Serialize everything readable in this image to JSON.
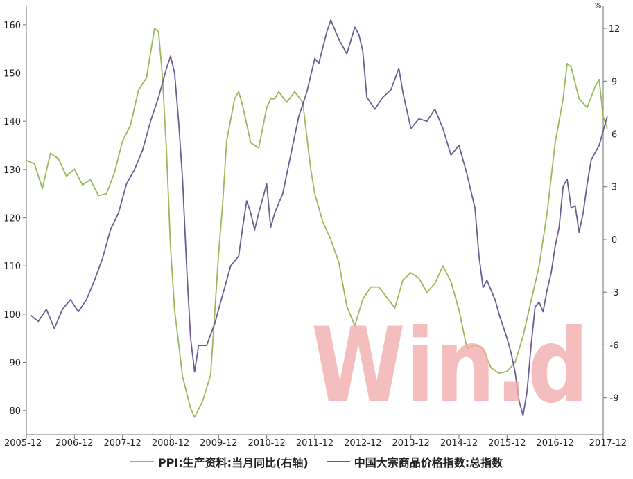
{
  "colors": {
    "ppi": "#9ab85a",
    "commodity": "#6d5b94",
    "watermark": "#f0a8a8",
    "axis": "#6f6f6f"
  },
  "watermark_text": "Win.d",
  "legend": {
    "ppi_label": "PPI:生产资料:当月同比(右轴)",
    "commodity_label": "中国大宗商品价格指数:总指数"
  },
  "chart_data": {
    "type": "line",
    "x_axis": {
      "ticks": [
        "2005-12",
        "2006-12",
        "2007-12",
        "2008-12",
        "2009-12",
        "2010-12",
        "2011-12",
        "2012-12",
        "2013-12",
        "2014-12",
        "2015-12",
        "2016-12",
        "2017-12"
      ],
      "range": [
        "2005-12",
        "2017-12"
      ]
    },
    "y_left": {
      "ticks": [
        80,
        90,
        100,
        110,
        120,
        130,
        140,
        150,
        160
      ],
      "range": [
        75,
        164
      ]
    },
    "y_right": {
      "unit": "%",
      "ticks": [
        -9,
        -6,
        -3,
        0,
        3,
        6,
        9,
        12
      ],
      "range": [
        -11.1,
        13.3
      ]
    },
    "series": [
      {
        "name": "PPI:生产资料:当月同比(右轴)",
        "axis": "right",
        "points": [
          [
            "2005-12",
            4.5
          ],
          [
            "2006-02",
            4.3
          ],
          [
            "2006-04",
            2.9
          ],
          [
            "2006-06",
            4.9
          ],
          [
            "2006-08",
            4.6
          ],
          [
            "2006-10",
            3.6
          ],
          [
            "2006-12",
            4.0
          ],
          [
            "2007-02",
            3.1
          ],
          [
            "2007-04",
            3.4
          ],
          [
            "2007-06",
            2.5
          ],
          [
            "2007-08",
            2.6
          ],
          [
            "2007-10",
            3.8
          ],
          [
            "2007-12",
            5.6
          ],
          [
            "2008-02",
            6.5
          ],
          [
            "2008-04",
            8.5
          ],
          [
            "2008-06",
            9.2
          ],
          [
            "2008-08",
            12.0
          ],
          [
            "2008-09",
            11.8
          ],
          [
            "2008-10",
            9.2
          ],
          [
            "2008-11",
            5.0
          ],
          [
            "2008-12",
            -0.5
          ],
          [
            "2009-01",
            -4.0
          ],
          [
            "2009-03",
            -7.8
          ],
          [
            "2009-05",
            -9.6
          ],
          [
            "2009-06",
            -10.1
          ],
          [
            "2009-08",
            -9.2
          ],
          [
            "2009-10",
            -7.7
          ],
          [
            "2009-12",
            -0.8
          ],
          [
            "2010-01",
            2.0
          ],
          [
            "2010-02",
            5.6
          ],
          [
            "2010-04",
            8.0
          ],
          [
            "2010-05",
            8.4
          ],
          [
            "2010-06",
            7.6
          ],
          [
            "2010-08",
            5.5
          ],
          [
            "2010-10",
            5.2
          ],
          [
            "2010-12",
            7.5
          ],
          [
            "2011-01",
            8.0
          ],
          [
            "2011-02",
            8.0
          ],
          [
            "2011-03",
            8.4
          ],
          [
            "2011-05",
            7.8
          ],
          [
            "2011-07",
            8.4
          ],
          [
            "2011-09",
            7.8
          ],
          [
            "2011-11",
            4.0
          ],
          [
            "2011-12",
            2.6
          ],
          [
            "2012-02",
            1.0
          ],
          [
            "2012-04",
            0.0
          ],
          [
            "2012-06",
            -1.3
          ],
          [
            "2012-08",
            -3.8
          ],
          [
            "2012-10",
            -4.9
          ],
          [
            "2012-12",
            -3.4
          ],
          [
            "2013-02",
            -2.7
          ],
          [
            "2013-04",
            -2.7
          ],
          [
            "2013-06",
            -3.3
          ],
          [
            "2013-08",
            -3.9
          ],
          [
            "2013-10",
            -2.3
          ],
          [
            "2013-12",
            -1.9
          ],
          [
            "2014-02",
            -2.2
          ],
          [
            "2014-04",
            -3.0
          ],
          [
            "2014-06",
            -2.5
          ],
          [
            "2014-08",
            -1.5
          ],
          [
            "2014-10",
            -2.4
          ],
          [
            "2014-12",
            -4.0
          ],
          [
            "2015-02",
            -6.2
          ],
          [
            "2015-04",
            -6.0
          ],
          [
            "2015-06",
            -6.2
          ],
          [
            "2015-08",
            -7.3
          ],
          [
            "2015-10",
            -7.6
          ],
          [
            "2015-12",
            -7.5
          ],
          [
            "2016-02",
            -7.0
          ],
          [
            "2016-04",
            -5.5
          ],
          [
            "2016-06",
            -3.5
          ],
          [
            "2016-08",
            -1.5
          ],
          [
            "2016-10",
            1.5
          ],
          [
            "2016-12",
            5.5
          ],
          [
            "2017-02",
            8.0
          ],
          [
            "2017-03",
            10.0
          ],
          [
            "2017-04",
            9.8
          ],
          [
            "2017-06",
            8.0
          ],
          [
            "2017-08",
            7.5
          ],
          [
            "2017-10",
            8.7
          ],
          [
            "2017-11",
            9.1
          ],
          [
            "2017-12",
            7.0
          ],
          [
            "2018-01",
            6.3
          ]
        ]
      },
      {
        "name": "中国大宗商品价格指数:总指数",
        "axis": "left",
        "points": [
          [
            "2006-01",
            99.8
          ],
          [
            "2006-03",
            98.5
          ],
          [
            "2006-05",
            101.0
          ],
          [
            "2006-07",
            97.0
          ],
          [
            "2006-09",
            101.0
          ],
          [
            "2006-11",
            103.0
          ],
          [
            "2007-01",
            100.5
          ],
          [
            "2007-03",
            103.0
          ],
          [
            "2007-05",
            107.0
          ],
          [
            "2007-07",
            111.5
          ],
          [
            "2007-09",
            117.5
          ],
          [
            "2007-11",
            121.0
          ],
          [
            "2008-01",
            127.0
          ],
          [
            "2008-03",
            130.0
          ],
          [
            "2008-05",
            134.0
          ],
          [
            "2008-07",
            140.0
          ],
          [
            "2008-09",
            145.0
          ],
          [
            "2008-11",
            151.0
          ],
          [
            "2008-12",
            153.5
          ],
          [
            "2009-01",
            150.0
          ],
          [
            "2009-02",
            140.0
          ],
          [
            "2009-03",
            128.0
          ],
          [
            "2009-04",
            110.0
          ],
          [
            "2009-05",
            95.0
          ],
          [
            "2009-06",
            88.0
          ],
          [
            "2009-07",
            93.5
          ],
          [
            "2009-09",
            93.5
          ],
          [
            "2009-11",
            98.0
          ],
          [
            "2010-01",
            104.0
          ],
          [
            "2010-03",
            110.0
          ],
          [
            "2010-05",
            112.0
          ],
          [
            "2010-06",
            118.0
          ],
          [
            "2010-07",
            123.5
          ],
          [
            "2010-08",
            121.0
          ],
          [
            "2010-09",
            117.5
          ],
          [
            "2010-10",
            121.0
          ],
          [
            "2010-11",
            124.0
          ],
          [
            "2010-12",
            127.0
          ],
          [
            "2011-01",
            118.0
          ],
          [
            "2011-02",
            121.0
          ],
          [
            "2011-04",
            125.0
          ],
          [
            "2011-06",
            133.0
          ],
          [
            "2011-08",
            141.0
          ],
          [
            "2011-10",
            146.0
          ],
          [
            "2011-12",
            153.0
          ],
          [
            "2012-01",
            152.0
          ],
          [
            "2012-03",
            158.5
          ],
          [
            "2012-04",
            161.0
          ],
          [
            "2012-06",
            157.0
          ],
          [
            "2012-08",
            154.0
          ],
          [
            "2012-10",
            159.5
          ],
          [
            "2012-11",
            158.0
          ],
          [
            "2012-12",
            154.5
          ],
          [
            "2013-01",
            145.0
          ],
          [
            "2013-03",
            142.5
          ],
          [
            "2013-05",
            145.0
          ],
          [
            "2013-07",
            146.5
          ],
          [
            "2013-09",
            151.0
          ],
          [
            "2013-10",
            146.0
          ],
          [
            "2013-12",
            138.5
          ],
          [
            "2014-02",
            140.5
          ],
          [
            "2014-04",
            140.0
          ],
          [
            "2014-06",
            142.5
          ],
          [
            "2014-08",
            138.5
          ],
          [
            "2014-10",
            133.0
          ],
          [
            "2014-12",
            135.0
          ],
          [
            "2015-02",
            129.0
          ],
          [
            "2015-04",
            122.0
          ],
          [
            "2015-05",
            112.0
          ],
          [
            "2015-06",
            105.5
          ],
          [
            "2015-07",
            107.0
          ],
          [
            "2015-09",
            103.0
          ],
          [
            "2015-10",
            100.0
          ],
          [
            "2015-12",
            95.0
          ],
          [
            "2016-01",
            92.0
          ],
          [
            "2016-02",
            88.0
          ],
          [
            "2016-03",
            82.0
          ],
          [
            "2016-04",
            79.0
          ],
          [
            "2016-05",
            84.0
          ],
          [
            "2016-06",
            93.5
          ],
          [
            "2016-07",
            101.5
          ],
          [
            "2016-08",
            102.5
          ],
          [
            "2016-09",
            100.5
          ],
          [
            "2016-10",
            105.0
          ],
          [
            "2016-11",
            108.5
          ],
          [
            "2016-12",
            114.0
          ],
          [
            "2017-01",
            118.0
          ],
          [
            "2017-02",
            126.5
          ],
          [
            "2017-03",
            128.0
          ],
          [
            "2017-04",
            122.0
          ],
          [
            "2017-05",
            122.5
          ],
          [
            "2017-06",
            117.0
          ],
          [
            "2017-07",
            121.0
          ],
          [
            "2017-08",
            127.0
          ],
          [
            "2017-09",
            132.0
          ],
          [
            "2017-10",
            133.5
          ],
          [
            "2017-11",
            135.0
          ],
          [
            "2017-12",
            138.0
          ],
          [
            "2018-01",
            141.0
          ]
        ]
      }
    ]
  }
}
